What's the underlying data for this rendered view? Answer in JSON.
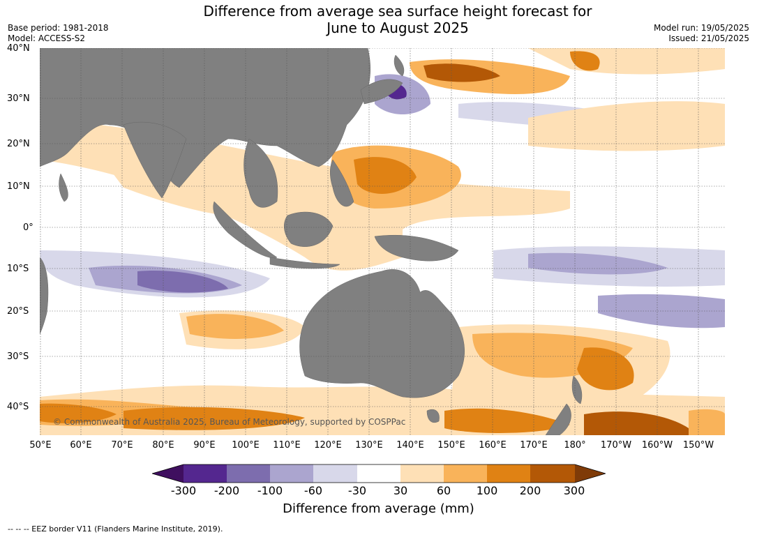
{
  "header": {
    "title_line1": "Difference from average sea surface height forecast for",
    "title_line2": "June to August 2025",
    "base_period": "Base period: 1981-2018",
    "model": "Model: ACCESS-S2",
    "model_run": "Model run: 19/05/2025",
    "issued": "Issued: 21/05/2025"
  },
  "map": {
    "lat_labels": [
      "40°N",
      "30°N",
      "20°N",
      "10°N",
      "0°",
      "10°S",
      "20°S",
      "30°S",
      "40°S"
    ],
    "lon_labels": [
      "50°E",
      "60°E",
      "70°E",
      "80°E",
      "90°E",
      "100°E",
      "110°E",
      "120°E",
      "130°E",
      "140°E",
      "150°E",
      "160°E",
      "170°E",
      "180°",
      "170°W",
      "160°W",
      "150°W"
    ],
    "copyright": "© Commonwealth of Australia 2025, Bureau of Meteorology, supported by COSPPac",
    "land_color": "#808080"
  },
  "colorbar": {
    "title": "Difference from average (mm)",
    "ticks": [
      "-300",
      "-200",
      "-100",
      "-60",
      "-30",
      "30",
      "60",
      "100",
      "200",
      "300"
    ],
    "colors": [
      "#3f0f5f",
      "#54278f",
      "#7d6dae",
      "#aba5cf",
      "#d8d8ea",
      "#ffffff",
      "#fee0b6",
      "#f9b35a",
      "#e08214",
      "#b35806",
      "#7f3b08"
    ]
  },
  "footer": {
    "note": "--  --  -- EEZ border V11 (Flanders Marine Institute, 2019)."
  }
}
